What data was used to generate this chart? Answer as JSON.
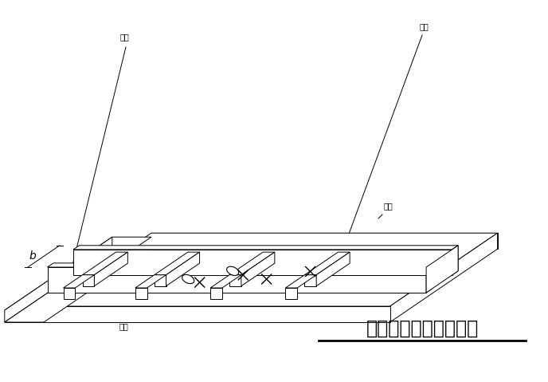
{
  "title": "地下连续墙导墙立面图",
  "bg_color": "#ffffff",
  "line_color": "#000000",
  "label_daogqiang_tl": "导墙",
  "label_zhicheng_tr": "支撑",
  "label_zhicheng_bl": "支撑",
  "label_daogqiang_br": "导墙",
  "label_b": "b",
  "fig_width": 6.88,
  "fig_height": 4.79,
  "dpi": 100
}
